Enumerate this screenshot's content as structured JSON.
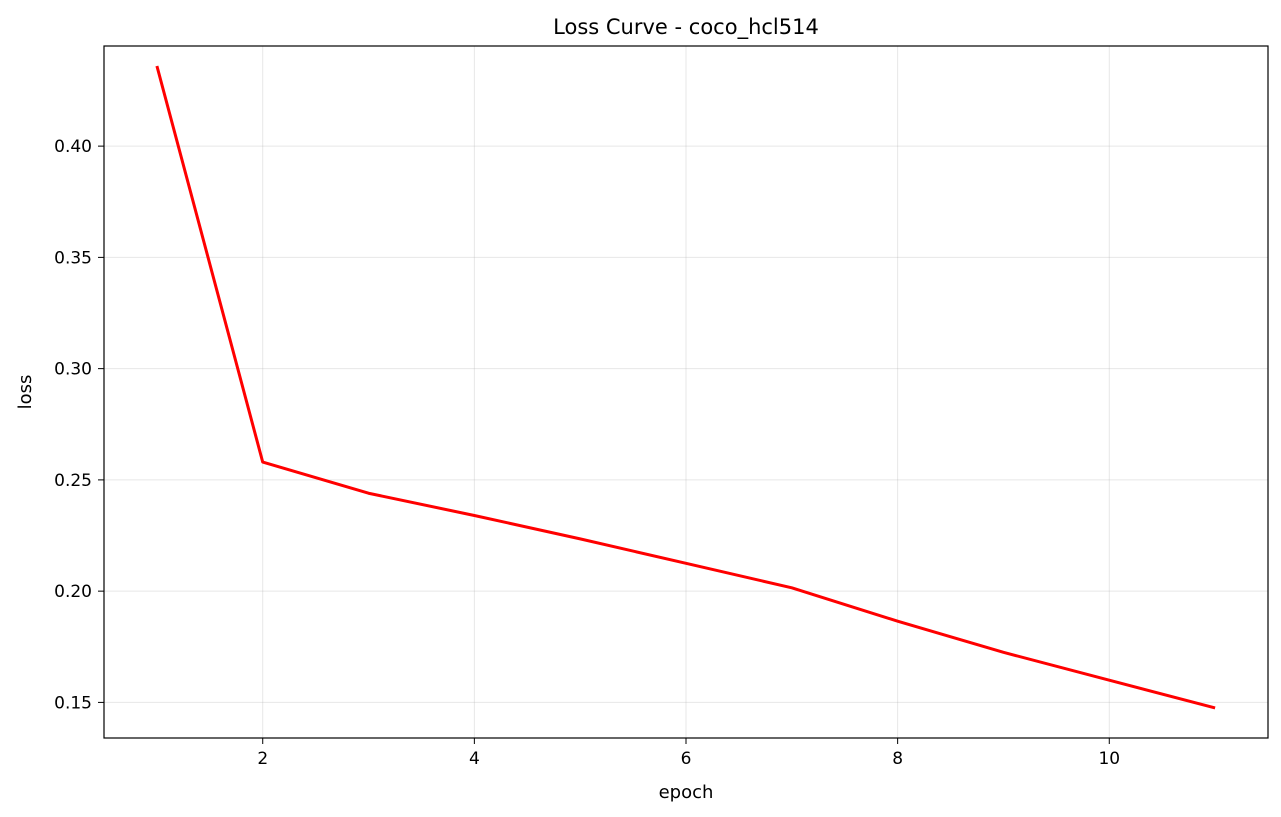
{
  "chart_data": {
    "type": "line",
    "title": "Loss Curve - coco_hcl514",
    "xlabel": "epoch",
    "ylabel": "loss",
    "xlim": [
      0.5,
      11.5
    ],
    "ylim": [
      0.134,
      0.445
    ],
    "xticks": [
      2,
      4,
      6,
      8,
      10
    ],
    "xtick_labels": [
      "2",
      "4",
      "6",
      "8",
      "10"
    ],
    "yticks": [
      0.15,
      0.2,
      0.25,
      0.3,
      0.35,
      0.4
    ],
    "ytick_labels": [
      "0.15",
      "0.20",
      "0.25",
      "0.30",
      "0.35",
      "0.40"
    ],
    "grid": true,
    "series": [
      {
        "color": "#ff0000",
        "x": [
          1,
          2,
          3,
          4,
          5,
          6,
          7,
          8,
          9,
          10,
          11
        ],
        "y": [
          0.436,
          0.258,
          0.244,
          0.234,
          0.2235,
          0.2125,
          0.2015,
          0.1865,
          0.1725,
          0.16,
          0.1475
        ]
      }
    ]
  }
}
